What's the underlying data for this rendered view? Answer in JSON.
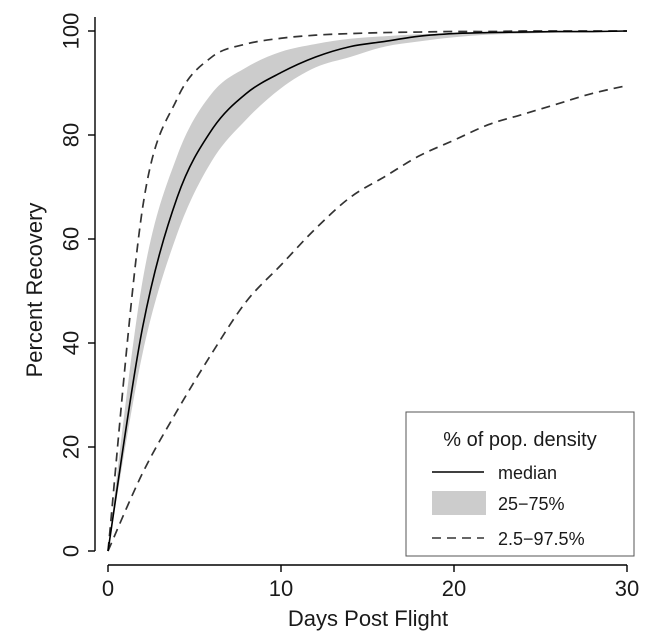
{
  "chart_data": {
    "type": "line",
    "title": "",
    "xlabel": "Days Post Flight",
    "ylabel": "Percent Recovery",
    "xlim": [
      0,
      30
    ],
    "ylim": [
      0,
      100
    ],
    "xticks": [
      0,
      10,
      20,
      30
    ],
    "yticks": [
      0,
      20,
      40,
      60,
      80,
      100
    ],
    "grid": false,
    "legend": {
      "title": "% of pop. density",
      "position": "bottom-right",
      "entries": [
        {
          "label": "median",
          "style": "solid line"
        },
        {
          "label": "25−75%",
          "style": "shaded band"
        },
        {
          "label": "2.5−97.5%",
          "style": "dashed line"
        }
      ]
    },
    "x": [
      0,
      2,
      4,
      6,
      8,
      10,
      12,
      14,
      16,
      18,
      20,
      22,
      24,
      26,
      28,
      30
    ],
    "series": [
      {
        "name": "median",
        "values": [
          0,
          43,
          68,
          81,
          88,
          92,
          95,
          97,
          98,
          99,
          99.5,
          99.7,
          99.8,
          99.9,
          99.9,
          100
        ]
      },
      {
        "name": "25−75%",
        "lower": [
          0,
          38,
          61,
          75,
          83,
          89,
          93,
          95,
          97,
          98,
          98.8,
          99.3,
          99.5,
          99.7,
          99.8,
          99.9
        ],
        "upper": [
          0,
          52,
          76,
          88,
          93,
          96,
          97.5,
          98.5,
          99,
          99.4,
          99.6,
          99.8,
          99.9,
          100,
          100,
          100
        ]
      },
      {
        "name": "2.5−97.5% upper",
        "values": [
          0,
          66,
          87,
          95,
          97.5,
          98.6,
          99.2,
          99.5,
          99.7,
          99.8,
          99.9,
          99.9,
          100,
          100,
          100,
          100
        ]
      },
      {
        "name": "2.5−97.5% lower",
        "values": [
          0,
          15,
          27,
          38,
          48,
          55,
          62,
          68,
          72,
          76,
          79,
          82,
          84,
          86,
          88,
          89.5
        ]
      }
    ],
    "colors": {
      "band": "#cccccc",
      "median": "#000000",
      "dashed": "#333333",
      "axis": "#000000"
    }
  }
}
